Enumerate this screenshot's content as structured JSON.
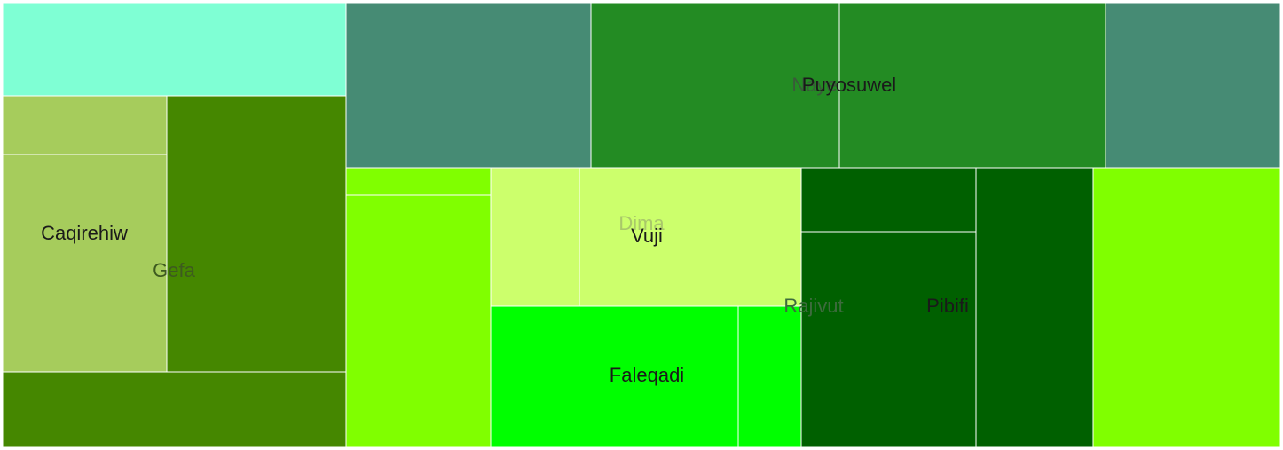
{
  "chart_data": {
    "type": "treemap",
    "title": "",
    "nodes": [
      {
        "id": "n1",
        "label": "",
        "color": "#7fffd4",
        "value": 13.8
      },
      {
        "id": "n2",
        "label": "",
        "color": "#a6cc5c",
        "value": 3.5
      },
      {
        "id": "n3",
        "label": "Caqirehiw",
        "color": "#a6cc5c",
        "value": 13.1
      },
      {
        "id": "n4",
        "label": "Gefa",
        "color": "#458700",
        "value": 22.4
      },
      {
        "id": "n5",
        "label": "",
        "color": "#458700",
        "value": 9.8
      },
      {
        "id": "n6",
        "label": "",
        "color": "#468b74",
        "value": 14.7
      },
      {
        "id": "n7",
        "label": "Naye",
        "color": "#238b23",
        "value": 15.0
      },
      {
        "id": "n8",
        "label": "Puyosuwel",
        "color": "#238b23",
        "value": 16.1
      },
      {
        "id": "n9",
        "label": "",
        "color": "#468b74",
        "value": 10.6
      },
      {
        "id": "n10",
        "label": "",
        "color": "#80ff00",
        "value": 1.4
      },
      {
        "id": "n11",
        "label": "",
        "color": "#80ff00",
        "value": 13.0
      },
      {
        "id": "n12",
        "label": "Dima",
        "color": "#ccff6c",
        "value": 4.5
      },
      {
        "id": "n13",
        "label": "Vuji",
        "color": "#ccff6c",
        "value": 10.8
      },
      {
        "id": "n14",
        "label": "Faleqadi",
        "color": "#00ff00",
        "value": 12.2
      },
      {
        "id": "n15",
        "label": "",
        "color": "#00ff00",
        "value": 3.1
      },
      {
        "id": "n16",
        "label": "",
        "color": "#006000",
        "value": 4.0
      },
      {
        "id": "n17",
        "label": "Rajivut",
        "color": "#006000",
        "value": 13.4
      },
      {
        "id": "n18",
        "label": "Pibifi",
        "color": "#006000",
        "value": 6.9
      },
      {
        "id": "n19",
        "label": "",
        "color": "#80ff00",
        "value": 11.0
      }
    ]
  }
}
